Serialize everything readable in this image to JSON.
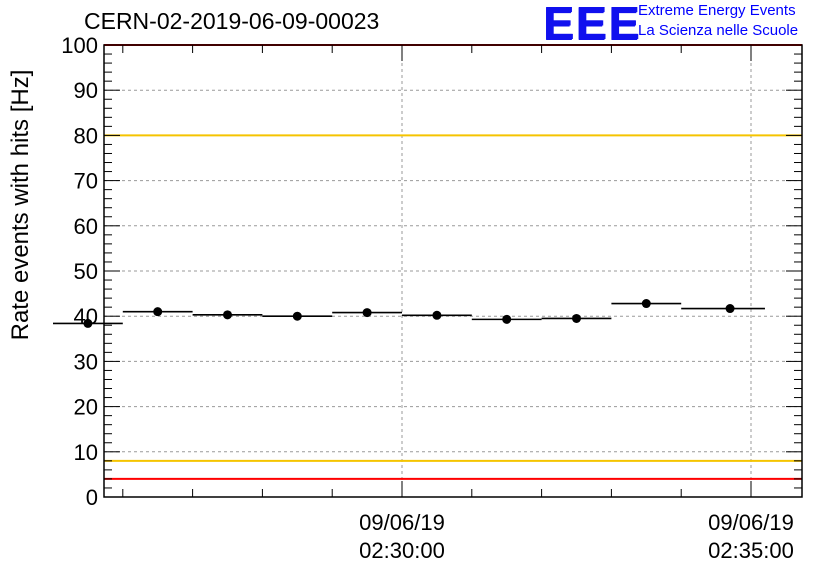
{
  "chart_data": {
    "type": "scatter",
    "title": "CERN-02-2019-06-09-00023",
    "ylabel": "Rate events with hits [Hz]",
    "xlabel": "",
    "ylim": [
      0,
      100
    ],
    "yticks": [
      0,
      10,
      20,
      30,
      40,
      50,
      60,
      70,
      80,
      90,
      100
    ],
    "xticks": [
      {
        "label_line1": "09/06/19",
        "label_line2": "02:30:00",
        "minute": 30
      },
      {
        "label_line1": "09/06/19",
        "label_line2": "02:35:00",
        "minute": 35
      }
    ],
    "grid": true,
    "series": [
      {
        "x_start_minute": [
          25.0,
          26.0,
          27.0,
          28.0,
          29.0,
          30.0,
          31.0,
          32.0,
          33.0,
          34.0
        ],
        "x_end_minute": [
          26.0,
          27.0,
          28.0,
          29.0,
          30.0,
          31.0,
          32.0,
          33.0,
          34.0,
          35.2
        ],
        "x_point_minute": [
          25.5,
          26.5,
          27.5,
          28.5,
          29.5,
          30.5,
          31.5,
          32.5,
          33.5,
          34.7
        ],
        "values": [
          38.4,
          41.0,
          40.3,
          40.0,
          40.8,
          40.2,
          39.3,
          39.5,
          42.8,
          41.7
        ],
        "color": "#000000"
      }
    ],
    "reference_lines": [
      {
        "value": 100,
        "color": "#ff0000"
      },
      {
        "value": 80,
        "color": "#f5c400"
      },
      {
        "value": 8,
        "color": "#f5c400"
      },
      {
        "value": 4,
        "color": "#ff0000"
      }
    ]
  },
  "logo": {
    "mark": "EEE",
    "line1": "Extreme Energy Events",
    "line2": "La Scienza nelle Scuole",
    "color": "#0000ff"
  }
}
